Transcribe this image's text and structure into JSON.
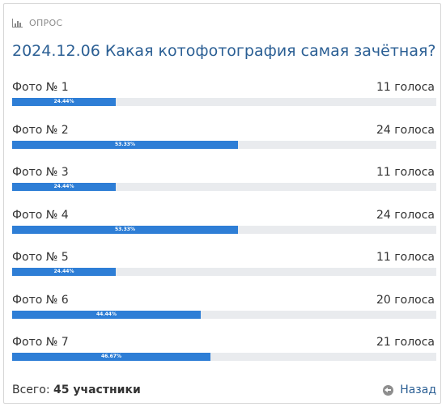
{
  "poll": {
    "header_label": "ОПРОС",
    "header_icon": "bar-chart-icon",
    "title": "2024.12.06 Какая котофотография самая зачётная?",
    "options": [
      {
        "label": "Фото № 1",
        "votes": "11 голоса",
        "percent": "24.44%",
        "fraction": 0.2444
      },
      {
        "label": "Фото № 2",
        "votes": "24 голоса",
        "percent": "53.33%",
        "fraction": 0.5333
      },
      {
        "label": "Фото № 3",
        "votes": "11 голоса",
        "percent": "24.44%",
        "fraction": 0.2444
      },
      {
        "label": "Фото № 4",
        "votes": "24 голоса",
        "percent": "53.33%",
        "fraction": 0.5333
      },
      {
        "label": "Фото № 5",
        "votes": "11 голоса",
        "percent": "24.44%",
        "fraction": 0.2444
      },
      {
        "label": "Фото № 6",
        "votes": "20 голоса",
        "percent": "44.44%",
        "fraction": 0.4444
      },
      {
        "label": "Фото № 7",
        "votes": "21 голоса",
        "percent": "46.67%",
        "fraction": 0.4667
      }
    ],
    "total_label": "Всего:",
    "total_value": "45 участники",
    "back_label": "Назад",
    "back_icon": "arrow-left-circle-icon"
  },
  "colors": {
    "bar_fill": "#2e7ed6",
    "bar_track": "#e9ebee",
    "title": "#2b5f94",
    "link": "#2b5f94"
  }
}
